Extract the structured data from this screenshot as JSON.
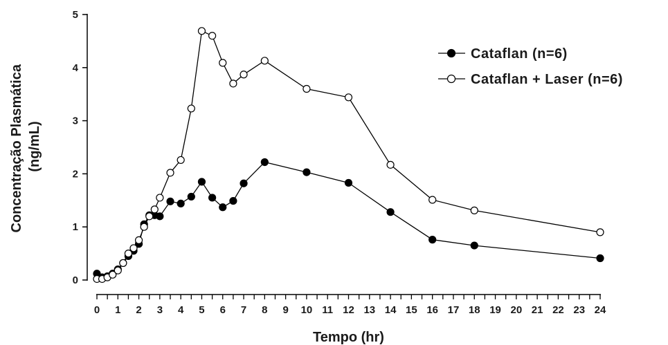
{
  "chart_data": {
    "type": "line",
    "title": "",
    "xlabel": "Tempo (hr)",
    "ylabel_lines": [
      "Concentração Plasmática",
      "(ng/mL)"
    ],
    "xlim": [
      0,
      24
    ],
    "ylim": [
      0,
      5
    ],
    "x_ticks": [
      0,
      1,
      2,
      3,
      4,
      5,
      6,
      7,
      8,
      9,
      10,
      11,
      12,
      13,
      14,
      15,
      16,
      17,
      18,
      19,
      20,
      21,
      22,
      23,
      24
    ],
    "x_tick_labels": [
      "0",
      "1",
      "2",
      "3",
      "4",
      "5",
      "6",
      "7",
      "8",
      "9",
      "10",
      "11",
      "12",
      "13",
      "14",
      "15",
      "16",
      "17",
      "18",
      "19",
      "20",
      "21",
      "22",
      "23",
      "24"
    ],
    "y_ticks": [
      0,
      1,
      2,
      3,
      4,
      5
    ],
    "y_tick_labels": [
      "0",
      "1",
      "2",
      "3",
      "4",
      "5"
    ],
    "grid": false,
    "legend_position": "top-right",
    "series": [
      {
        "name": "Cataflan (n=6)",
        "marker": "filled-circle",
        "color": "#000000",
        "points": [
          {
            "x": 0.0,
            "y": 0.12
          },
          {
            "x": 0.25,
            "y": 0.05
          },
          {
            "x": 0.5,
            "y": 0.07
          },
          {
            "x": 0.75,
            "y": 0.12
          },
          {
            "x": 1.0,
            "y": 0.2
          },
          {
            "x": 1.25,
            "y": 0.32
          },
          {
            "x": 1.5,
            "y": 0.45
          },
          {
            "x": 1.75,
            "y": 0.55
          },
          {
            "x": 2.0,
            "y": 0.68
          },
          {
            "x": 2.25,
            "y": 1.05
          },
          {
            "x": 2.5,
            "y": 1.22
          },
          {
            "x": 2.75,
            "y": 1.22
          },
          {
            "x": 3.0,
            "y": 1.2
          },
          {
            "x": 3.5,
            "y": 1.48
          },
          {
            "x": 4.0,
            "y": 1.44
          },
          {
            "x": 4.5,
            "y": 1.57
          },
          {
            "x": 5.0,
            "y": 1.85
          },
          {
            "x": 5.5,
            "y": 1.55
          },
          {
            "x": 6.0,
            "y": 1.37
          },
          {
            "x": 6.5,
            "y": 1.49
          },
          {
            "x": 7.0,
            "y": 1.82
          },
          {
            "x": 8.0,
            "y": 2.22
          },
          {
            "x": 10.0,
            "y": 2.03
          },
          {
            "x": 12.0,
            "y": 1.83
          },
          {
            "x": 14.0,
            "y": 1.28
          },
          {
            "x": 16.0,
            "y": 0.76
          },
          {
            "x": 18.0,
            "y": 0.65
          },
          {
            "x": 24.0,
            "y": 0.41
          }
        ]
      },
      {
        "name": "Cataflan + Laser (n=6)",
        "marker": "open-circle",
        "color": "#000000",
        "points": [
          {
            "x": 0.0,
            "y": 0.02
          },
          {
            "x": 0.25,
            "y": 0.02
          },
          {
            "x": 0.5,
            "y": 0.05
          },
          {
            "x": 0.75,
            "y": 0.1
          },
          {
            "x": 1.0,
            "y": 0.18
          },
          {
            "x": 1.25,
            "y": 0.32
          },
          {
            "x": 1.5,
            "y": 0.5
          },
          {
            "x": 1.75,
            "y": 0.6
          },
          {
            "x": 2.0,
            "y": 0.75
          },
          {
            "x": 2.25,
            "y": 1.0
          },
          {
            "x": 2.5,
            "y": 1.2
          },
          {
            "x": 2.75,
            "y": 1.33
          },
          {
            "x": 3.0,
            "y": 1.55
          },
          {
            "x": 3.5,
            "y": 2.02
          },
          {
            "x": 4.0,
            "y": 2.26
          },
          {
            "x": 4.5,
            "y": 3.23
          },
          {
            "x": 5.0,
            "y": 4.69
          },
          {
            "x": 5.5,
            "y": 4.6
          },
          {
            "x": 6.0,
            "y": 4.09
          },
          {
            "x": 6.5,
            "y": 3.7
          },
          {
            "x": 7.0,
            "y": 3.87
          },
          {
            "x": 8.0,
            "y": 4.13
          },
          {
            "x": 10.0,
            "y": 3.6
          },
          {
            "x": 12.0,
            "y": 3.44
          },
          {
            "x": 14.0,
            "y": 2.17
          },
          {
            "x": 16.0,
            "y": 1.51
          },
          {
            "x": 18.0,
            "y": 1.31
          },
          {
            "x": 24.0,
            "y": 0.9
          }
        ]
      }
    ]
  }
}
